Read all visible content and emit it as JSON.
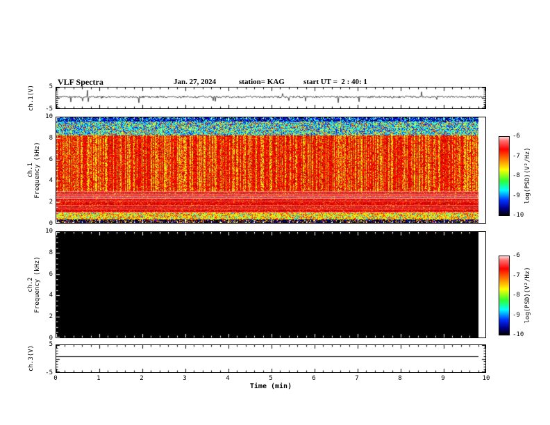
{
  "header": {
    "title": "VLF Spectra",
    "date": "Jan. 27, 2024",
    "station": "station= KAG",
    "start_ut": "start UT =  2 : 40: 1"
  },
  "axes": {
    "time_label": "Time (min)",
    "x_ticks": [
      "0",
      "1",
      "2",
      "3",
      "4",
      "5",
      "6",
      "7",
      "8",
      "9",
      "10"
    ],
    "panel1": {
      "ylabel": "ch.1(V)",
      "yticks": [
        "5",
        "-5"
      ]
    },
    "panel2": {
      "ylabel_line1": "ch.1",
      "ylabel_line2": "Frequency (kHz)",
      "yticks": [
        "10",
        "8",
        "6",
        "4",
        "2",
        "0"
      ]
    },
    "panel3": {
      "ylabel_line1": "ch.2",
      "ylabel_line2": "Frequency (kHz)",
      "yticks": [
        "10",
        "8",
        "6",
        "4",
        "2",
        "0"
      ]
    },
    "panel4": {
      "ylabel": "ch.3(V)",
      "yticks": [
        "5",
        "-5"
      ]
    }
  },
  "colorbar": {
    "label": "log(PSD)(V²/Hz)",
    "ticks": [
      "-6",
      "-7",
      "-8",
      "-9",
      "-10"
    ],
    "value_range": [
      -10,
      -6
    ],
    "gradient": [
      "#ffd8d8 0%",
      "#ff7070 5%",
      "#ff0000 16%",
      "#ff8800 30%",
      "#ffff00 42%",
      "#30ff30 56%",
      "#00ffff 68%",
      "#0030ff 81%",
      "#000090 91%",
      "#000000 100%"
    ]
  },
  "chart_data": [
    {
      "type": "line",
      "name": "ch.1 voltage waveform",
      "xlim": [
        0,
        10
      ],
      "x_unit": "min",
      "ylabel": "ch.1(V)",
      "ylim": [
        -5,
        5
      ],
      "summary": "continuous noisy trace fluctuating slightly above 0 V with frequent small impulsive spikes over the full 10 minutes"
    },
    {
      "type": "heatmap",
      "name": "ch.1 VLF spectrogram",
      "xlabel": "Time (min)",
      "xlim": [
        0,
        10
      ],
      "ylabel": "ch.1 Frequency (kHz)",
      "ylim": [
        0,
        10
      ],
      "value_label": "log(PSD)(V²/Hz)",
      "value_range": [
        -10,
        -6
      ],
      "colormap": "jet",
      "features": [
        "broadband red/orange background (about -6.5 log PSD) from ~1 to 8.3 kHz",
        "dense vertical green-yellow sferic burst striations from ~3 to 8.3 kHz throughout the record",
        "speckled blue/green/cyan band from ~8.3 to 10 kHz",
        "bright pink-white horizontal emission lines between ~2 and 3 kHz",
        "speckled yellow-green band near 0.4-1 kHz",
        "dark near-noise-floor strip below ~0.3 kHz",
        "data ends slightly before 10 min leaving a thin white gap at the right edge"
      ]
    },
    {
      "type": "heatmap",
      "name": "ch.2 VLF spectrogram",
      "xlim": [
        0,
        10
      ],
      "ylabel": "ch.2 Frequency (kHz)",
      "ylim": [
        0,
        10
      ],
      "value_label": "log(PSD)(V²/Hz)",
      "value_range": [
        -10,
        -6
      ],
      "colormap": "jet",
      "features": [
        "no signal - entire panel at or below the -10 noise floor (rendered solid black)"
      ]
    },
    {
      "type": "line",
      "name": "ch.3 voltage waveform",
      "xlim": [
        0,
        10
      ],
      "ylabel": "ch.3(V)",
      "ylim": [
        -5,
        5
      ],
      "summary": "flat featureless line near +1 V across the full record"
    }
  ]
}
